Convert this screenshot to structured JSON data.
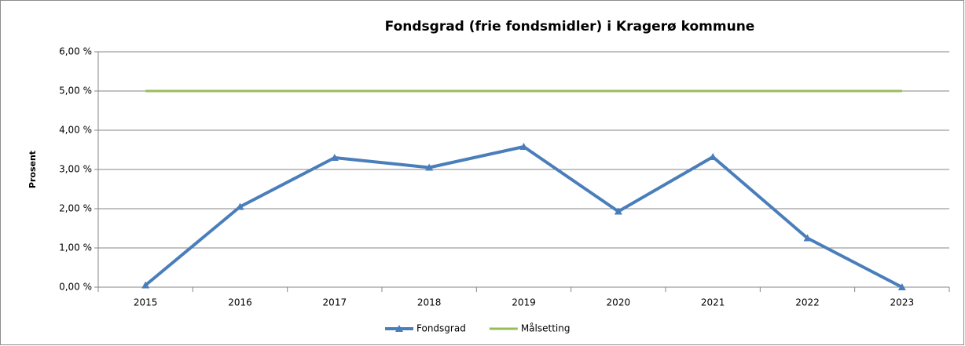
{
  "chart_data": {
    "type": "line",
    "title": "Fondsgrad (frie fondsmidler) i Kragerø kommune",
    "ylabel": "Prosent",
    "categories": [
      "2015",
      "2016",
      "2017",
      "2018",
      "2019",
      "2020",
      "2021",
      "2022",
      "2023"
    ],
    "series": [
      {
        "name": "Fondsgrad",
        "color": "#4a7ebb",
        "marker": "triangle",
        "values": [
          0.05,
          2.05,
          3.3,
          3.05,
          3.58,
          1.93,
          3.32,
          1.25,
          0.0
        ]
      },
      {
        "name": "Målsetting",
        "color": "#9bbb59",
        "values": [
          5,
          5,
          5,
          5,
          5,
          5,
          5,
          5,
          5
        ]
      }
    ],
    "ylim": [
      0,
      6
    ],
    "yticks": [
      {
        "value": 0,
        "label": "0,00 %"
      },
      {
        "value": 1,
        "label": "1,00 %"
      },
      {
        "value": 2,
        "label": "2,00 %"
      },
      {
        "value": 3,
        "label": "3,00 %"
      },
      {
        "value": 4,
        "label": "4,00 %"
      },
      {
        "value": 5,
        "label": "5,00 %"
      },
      {
        "value": 6,
        "label": "6,00 %"
      }
    ],
    "grid": true,
    "legend": "bottom"
  }
}
